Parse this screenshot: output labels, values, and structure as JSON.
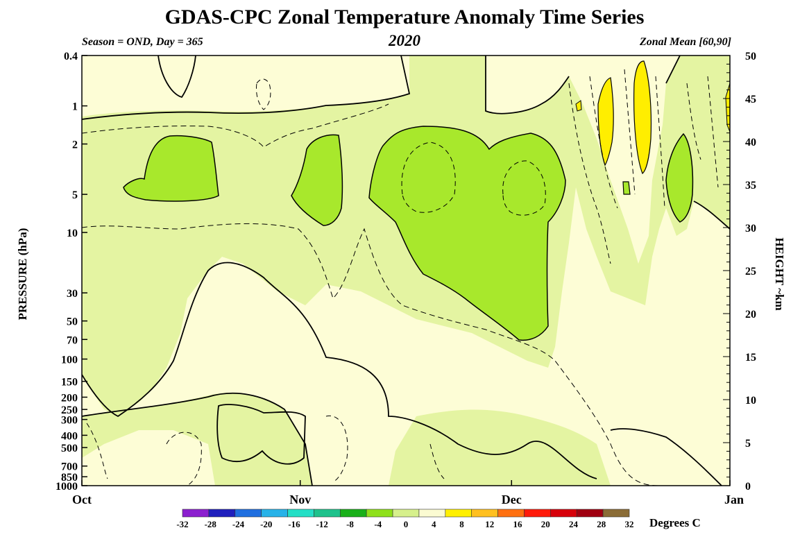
{
  "chart_data": {
    "type": "heatmap",
    "title": "GDAS-CPC Zonal Temperature Anomaly Time Series",
    "subtitle_left": "Season = OND, Day = 365",
    "subtitle_center": "2020",
    "subtitle_right": "Zonal Mean [60,90]",
    "ylabel_left": "PRESSURE (hPa)",
    "ylabel_right": "HEIGHT ~km",
    "x_ticks": [
      "Oct",
      "Nov",
      "Dec",
      "Jan"
    ],
    "x_tick_days": [
      0,
      31,
      61,
      92
    ],
    "xlim": [
      0,
      92
    ],
    "pressure_ticks": [
      "0.4",
      "1",
      "2",
      "5",
      "10",
      "30",
      "50",
      "70",
      "100",
      "150",
      "200",
      "250",
      "300",
      "400",
      "500",
      "700",
      "850",
      "1000"
    ],
    "height_ticks": [
      "0",
      "5",
      "10",
      "15",
      "20",
      "25",
      "30",
      "35",
      "40",
      "45",
      "50"
    ],
    "height_range_km": [
      0,
      50
    ],
    "colorbar": {
      "unit": "Degrees C",
      "tick_labels": [
        "-32",
        "-28",
        "-24",
        "-20",
        "-16",
        "-12",
        "-8",
        "-4",
        "0",
        "4",
        "8",
        "12",
        "16",
        "20",
        "24",
        "28",
        "32"
      ],
      "colors": [
        "#8c1fcf",
        "#1f1fbd",
        "#1f6fe0",
        "#27b2e8",
        "#24dfc6",
        "#1ec28c",
        "#19b019",
        "#8fe01a",
        "#d6f08c",
        "#fbfbd2",
        "#fff000",
        "#ffc020",
        "#ff7010",
        "#ff1b0b",
        "#d7000a",
        "#a00010",
        "#8a6c36"
      ]
    },
    "fill_colors": {
      "neg8_neg4": "#a8e82c",
      "neg4_0": "#e4f4a2",
      "zero_4": "#fdfdd6",
      "four_8": "#ffee00"
    },
    "regions": {
      "neg8_neg4": [
        "early Oct 2-5 hPa",
        "mid Oct to Nov 2-7 hPa",
        "mid Nov to early Dec 2-70 hPa",
        "late Dec 2-7 hPa"
      ],
      "four_8": [
        "mid Dec 1-3 hPa",
        "mid-late Dec 0.4-3 hPa"
      ]
    }
  }
}
